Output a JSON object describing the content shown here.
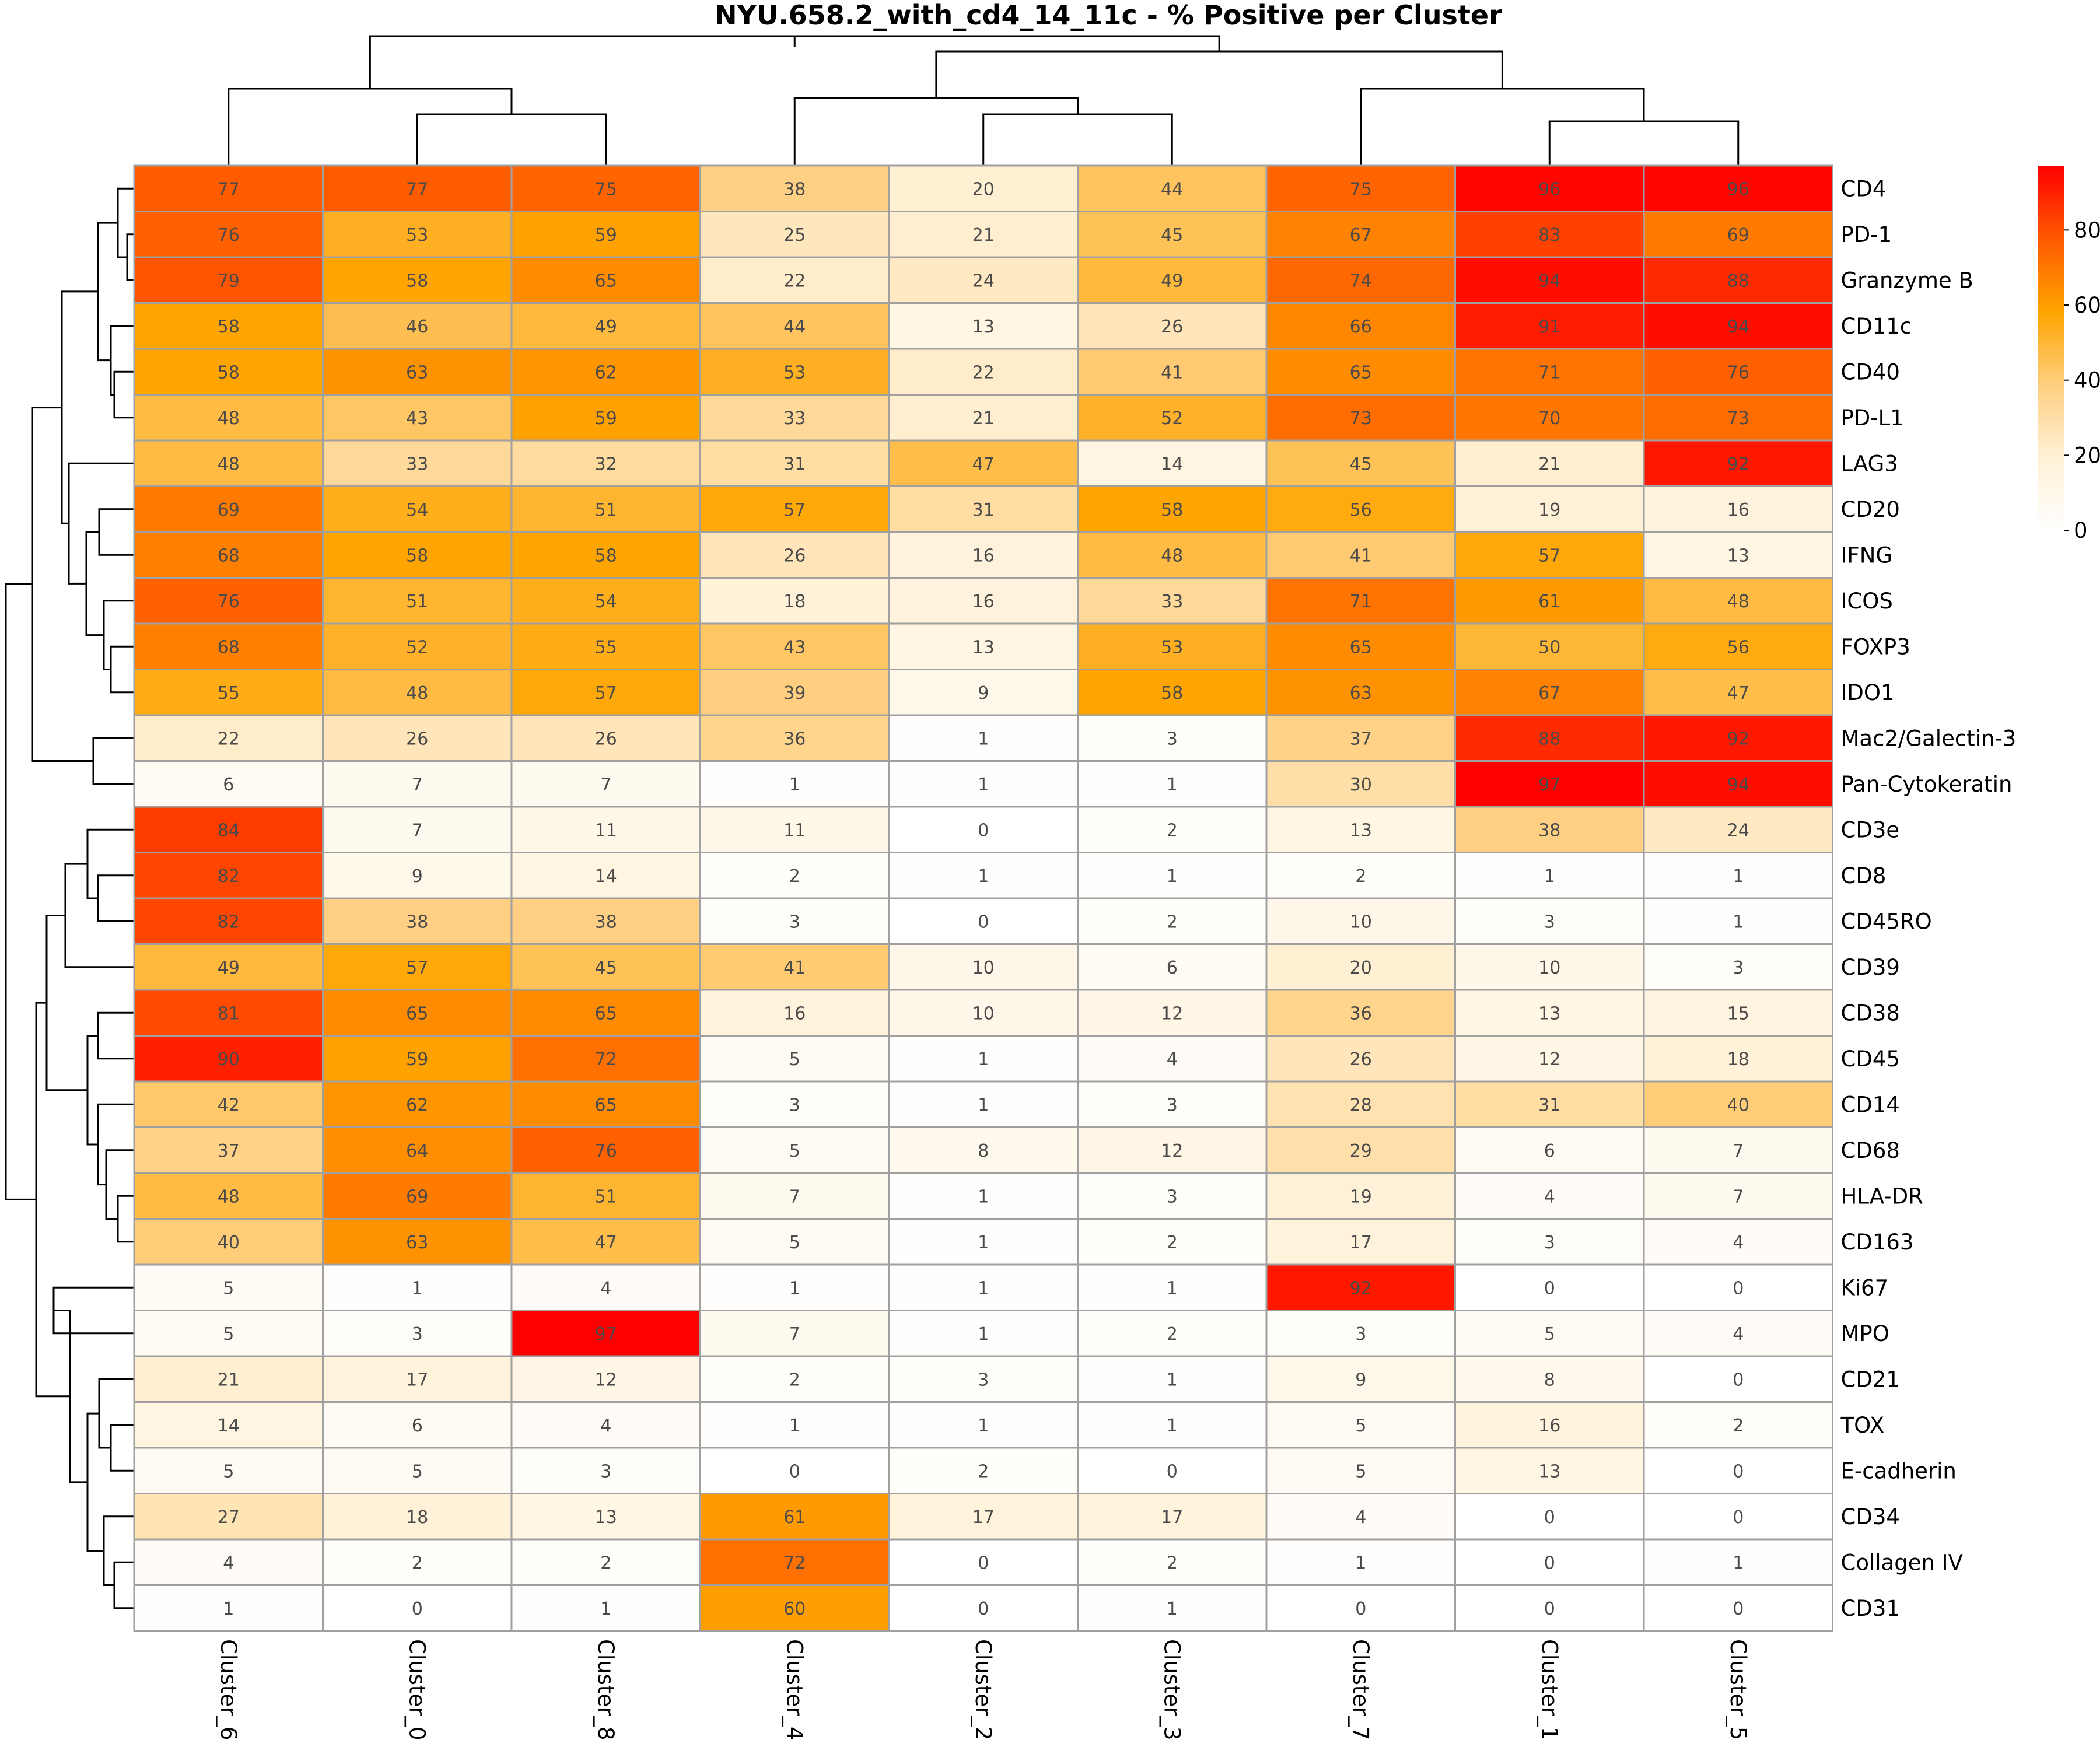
{
  "chart_data": {
    "type": "heatmap",
    "title": "NYU.658.2_with_cd4_14_11c - % Positive per Cluster",
    "columns": [
      "Cluster_6",
      "Cluster_0",
      "Cluster_8",
      "Cluster_4",
      "Cluster_2",
      "Cluster_3",
      "Cluster_7",
      "Cluster_1",
      "Cluster_5"
    ],
    "rows": [
      "CD4",
      "PD-1",
      "Granzyme B",
      "CD11c",
      "CD40",
      "PD-L1",
      "LAG3",
      "CD20",
      "IFNG",
      "ICOS",
      "FOXP3",
      "IDO1",
      "Mac2/Galectin-3",
      "Pan-Cytokeratin",
      "CD3e",
      "CD8",
      "CD45RO",
      "CD39",
      "CD38",
      "CD45",
      "CD14",
      "CD68",
      "HLA-DR",
      "CD163",
      "Ki67",
      "MPO",
      "CD21",
      "TOX",
      "E-cadherin",
      "CD34",
      "Collagen IV",
      "CD31"
    ],
    "values": [
      [
        77,
        77,
        75,
        38,
        20,
        44,
        75,
        96,
        96
      ],
      [
        76,
        53,
        59,
        25,
        21,
        45,
        67,
        83,
        69
      ],
      [
        79,
        58,
        65,
        22,
        24,
        49,
        74,
        94,
        88
      ],
      [
        58,
        46,
        49,
        44,
        13,
        26,
        66,
        91,
        94
      ],
      [
        58,
        63,
        62,
        53,
        22,
        41,
        65,
        71,
        76
      ],
      [
        48,
        43,
        59,
        33,
        21,
        52,
        73,
        70,
        73
      ],
      [
        48,
        33,
        32,
        31,
        47,
        14,
        45,
        21,
        92
      ],
      [
        69,
        54,
        51,
        57,
        31,
        58,
        56,
        19,
        16
      ],
      [
        68,
        58,
        58,
        26,
        16,
        48,
        41,
        57,
        13
      ],
      [
        76,
        51,
        54,
        18,
        16,
        33,
        71,
        61,
        48
      ],
      [
        68,
        52,
        55,
        43,
        13,
        53,
        65,
        50,
        56
      ],
      [
        55,
        48,
        57,
        39,
        9,
        58,
        63,
        67,
        47
      ],
      [
        22,
        26,
        26,
        36,
        1,
        3,
        37,
        88,
        92
      ],
      [
        6,
        7,
        7,
        1,
        1,
        1,
        30,
        97,
        94
      ],
      [
        84,
        7,
        11,
        11,
        0,
        2,
        13,
        38,
        24
      ],
      [
        82,
        9,
        14,
        2,
        1,
        1,
        2,
        1,
        1
      ],
      [
        82,
        38,
        38,
        3,
        0,
        2,
        10,
        3,
        1
      ],
      [
        49,
        57,
        45,
        41,
        10,
        6,
        20,
        10,
        3
      ],
      [
        81,
        65,
        65,
        16,
        10,
        12,
        36,
        13,
        15
      ],
      [
        90,
        59,
        72,
        5,
        1,
        4,
        26,
        12,
        18
      ],
      [
        42,
        62,
        65,
        3,
        1,
        3,
        28,
        31,
        40
      ],
      [
        37,
        64,
        76,
        5,
        8,
        12,
        29,
        6,
        7
      ],
      [
        48,
        69,
        51,
        7,
        1,
        3,
        19,
        4,
        7
      ],
      [
        40,
        63,
        47,
        5,
        1,
        2,
        17,
        3,
        4
      ],
      [
        5,
        1,
        4,
        1,
        1,
        1,
        92,
        0,
        0
      ],
      [
        5,
        3,
        97,
        7,
        1,
        2,
        3,
        5,
        4
      ],
      [
        21,
        17,
        12,
        2,
        3,
        1,
        9,
        8,
        0
      ],
      [
        14,
        6,
        4,
        1,
        1,
        1,
        5,
        16,
        2
      ],
      [
        5,
        5,
        3,
        0,
        2,
        0,
        5,
        13,
        0
      ],
      [
        27,
        18,
        13,
        61,
        17,
        17,
        4,
        0,
        0
      ],
      [
        4,
        2,
        2,
        72,
        0,
        2,
        1,
        0,
        1
      ],
      [
        1,
        0,
        1,
        60,
        0,
        1,
        0,
        0,
        0
      ]
    ],
    "color_scale": {
      "min": 0,
      "max": 97,
      "stops": [
        "#ffffff",
        "#fff1d6",
        "#ffcf80",
        "#ffa500",
        "#ff5a00",
        "#ff0000"
      ],
      "ticks": [
        0,
        20,
        40,
        60,
        80
      ]
    },
    "legend": "right",
    "column_dendrogram": true,
    "row_dendrogram": true
  }
}
